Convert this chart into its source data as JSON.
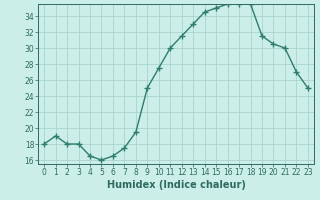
{
  "x": [
    0,
    1,
    2,
    3,
    4,
    5,
    6,
    7,
    8,
    9,
    10,
    11,
    12,
    13,
    14,
    15,
    16,
    17,
    18,
    19,
    20,
    21,
    22,
    23
  ],
  "y": [
    18,
    19,
    18,
    18,
    16.5,
    16,
    16.5,
    17.5,
    19.5,
    25,
    27.5,
    30,
    31.5,
    33,
    34.5,
    35,
    35.5,
    35.5,
    35.5,
    31.5,
    30.5,
    30,
    27,
    25
  ],
  "line_color": "#2e7d6e",
  "marker": "+",
  "marker_size": 4,
  "bg_color": "#cceee8",
  "grid_color": "#aad4cc",
  "xlabel": "Humidex (Indice chaleur)",
  "ylabel": "",
  "xlim": [
    -0.5,
    23.5
  ],
  "ylim": [
    15.5,
    35.5
  ],
  "yticks": [
    16,
    18,
    20,
    22,
    24,
    26,
    28,
    30,
    32,
    34
  ],
  "xticks": [
    0,
    1,
    2,
    3,
    4,
    5,
    6,
    7,
    8,
    9,
    10,
    11,
    12,
    13,
    14,
    15,
    16,
    17,
    18,
    19,
    20,
    21,
    22,
    23
  ],
  "tick_color": "#2e6b5e",
  "axis_color": "#2e6b5e",
  "font_color": "#2e6b5e",
  "label_fontsize": 7,
  "tick_fontsize": 5.5,
  "line_width": 1.0
}
